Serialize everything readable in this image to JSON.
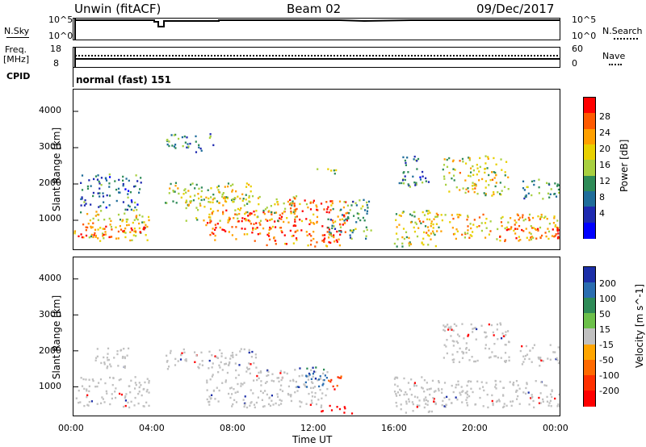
{
  "header": {
    "radar": "Unwin (fitACF)",
    "beam": "Beam 02",
    "date": "09/Dec/2017"
  },
  "nsky_panel": {
    "left_label": "N.Sky",
    "right_label": "N.Search",
    "left_ticks": [
      "10^5",
      "10^0"
    ],
    "right_ticks": [
      "10^5",
      "10^0"
    ]
  },
  "freq_panel": {
    "left_label_line1": "Freq.",
    "left_label_line2": "[MHz]",
    "right_label": "Nave",
    "left_ticks": [
      "18",
      "8"
    ],
    "right_ticks": [
      "60",
      "0"
    ]
  },
  "cpid": {
    "label": "CPID",
    "value": "normal (fast) 151"
  },
  "x_axis": {
    "label": "Time UT",
    "ticks": [
      "00:00",
      "04:00",
      "08:00",
      "12:00",
      "16:00",
      "20:00",
      "00:00"
    ]
  },
  "chart_data": [
    {
      "type": "heatmap",
      "name": "power",
      "ylabel": "Slant Range [km]",
      "yticks": [
        1000,
        2000,
        3000,
        4000
      ],
      "ylim": [
        200,
        4600
      ],
      "xlim": [
        0,
        24
      ],
      "colorbar": {
        "label": "Power [dB]",
        "ticks": [
          "28",
          "24",
          "20",
          "16",
          "12",
          "8",
          "4"
        ],
        "colors": [
          "#ff0000",
          "#ff5a00",
          "#ffa000",
          "#e8d000",
          "#a8d040",
          "#2e8b57",
          "#1f6d9a",
          "#1e2ab0",
          "#0000ff"
        ]
      },
      "regions": [
        {
          "t0": 0.0,
          "t1": 3.7,
          "r0": 450,
          "r1": 1300,
          "level": 0.62
        },
        {
          "t0": 0.2,
          "t1": 3.5,
          "r0": 550,
          "r1": 900,
          "level": 0.9
        },
        {
          "t0": 0.3,
          "t1": 3.3,
          "r0": 1300,
          "r1": 2300,
          "level": 0.25
        },
        {
          "t0": 4.5,
          "t1": 9.0,
          "r0": 1500,
          "r1": 2100,
          "level": 0.55
        },
        {
          "t0": 6.5,
          "t1": 10.5,
          "r0": 450,
          "r1": 1300,
          "level": 0.9
        },
        {
          "t0": 5.5,
          "t1": 12.0,
          "r0": 1000,
          "r1": 1700,
          "level": 0.6
        },
        {
          "t0": 10.5,
          "t1": 13.5,
          "r0": 600,
          "r1": 1600,
          "level": 0.95
        },
        {
          "t0": 12.5,
          "t1": 14.7,
          "r0": 500,
          "r1": 1600,
          "level": 0.4
        },
        {
          "t0": 9.5,
          "t1": 13.5,
          "r0": 300,
          "r1": 600,
          "level": 0.85
        },
        {
          "t0": 15.8,
          "t1": 18.0,
          "r0": 300,
          "r1": 1300,
          "level": 0.55
        },
        {
          "t0": 17.0,
          "t1": 24.0,
          "r0": 450,
          "r1": 1200,
          "level": 0.7
        },
        {
          "t0": 21.0,
          "t1": 24.0,
          "r0": 500,
          "r1": 800,
          "level": 0.95
        },
        {
          "t0": 18.2,
          "t1": 21.5,
          "r0": 1700,
          "r1": 2800,
          "level": 0.6
        },
        {
          "t0": 16.0,
          "t1": 17.5,
          "r0": 1900,
          "r1": 2800,
          "level": 0.25
        },
        {
          "t0": 4.5,
          "t1": 7.0,
          "r0": 2900,
          "r1": 3400,
          "level": 0.3
        },
        {
          "t0": 12.0,
          "t1": 13.0,
          "r0": 2300,
          "r1": 2500,
          "level": 0.45
        },
        {
          "t0": 22.0,
          "t1": 24.0,
          "r0": 1600,
          "r1": 2200,
          "level": 0.35
        }
      ]
    },
    {
      "type": "heatmap",
      "name": "velocity",
      "ylabel": "Slant Range [km]",
      "yticks": [
        1000,
        2000,
        3000,
        4000
      ],
      "ylim": [
        200,
        4600
      ],
      "xlim": [
        0,
        24
      ],
      "colorbar": {
        "label": "Velocity [m s^-1]",
        "ticks": [
          "200",
          "100",
          "50",
          "15",
          "-15",
          "-50",
          "-100",
          "-200"
        ],
        "colors": [
          "#1c2fa8",
          "#2a6db0",
          "#2e8b57",
          "#6cc04a",
          "#c0c0c0",
          "#ffa500",
          "#ff6a00",
          "#ff3000",
          "#ff0000"
        ]
      },
      "regions": [
        {
          "t0": 0.0,
          "t1": 3.7,
          "r0": 450,
          "r1": 1300,
          "level": 0.0
        },
        {
          "t0": 4.5,
          "t1": 9.0,
          "r0": 1500,
          "r1": 2100,
          "level": 0.0
        },
        {
          "t0": 6.5,
          "t1": 12.5,
          "r0": 450,
          "r1": 1500,
          "level": 0.0
        },
        {
          "t0": 11.0,
          "t1": 12.5,
          "r0": 1000,
          "r1": 1600,
          "level": 0.65
        },
        {
          "t0": 12.5,
          "t1": 13.2,
          "r0": 900,
          "r1": 1400,
          "level": -0.55
        },
        {
          "t0": 12.2,
          "t1": 13.8,
          "r0": 280,
          "r1": 500,
          "level": -0.9
        },
        {
          "t0": 15.8,
          "t1": 18.0,
          "r0": 300,
          "r1": 1300,
          "level": 0.0
        },
        {
          "t0": 17.0,
          "t1": 24.0,
          "r0": 450,
          "r1": 1200,
          "level": 0.0
        },
        {
          "t0": 18.2,
          "t1": 21.5,
          "r0": 1700,
          "r1": 2800,
          "level": 0.0
        },
        {
          "t0": 22.0,
          "t1": 24.0,
          "r0": 1600,
          "r1": 2200,
          "level": 0.0
        },
        {
          "t0": 1.0,
          "t1": 3.0,
          "r0": 1500,
          "r1": 2100,
          "level": 0.0
        }
      ]
    }
  ]
}
